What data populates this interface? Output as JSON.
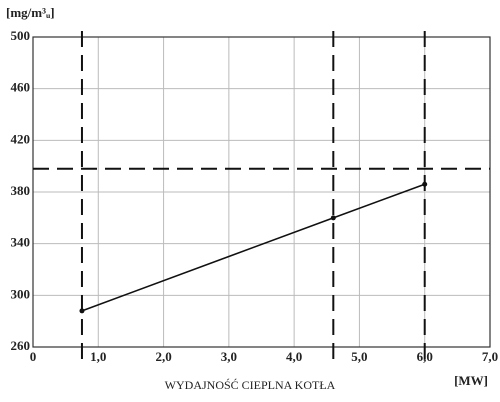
{
  "chart_data": {
    "type": "line",
    "ylabel": "[mg/m³ᵤ]",
    "xlabel": "WYDAJNOŚĆ CIEPLNA KOTŁA",
    "xunit": "[MW]",
    "x": [
      0.75,
      4.6,
      6.0
    ],
    "values": [
      288,
      360,
      386
    ],
    "color": "#111111",
    "xlim": [
      0,
      7
    ],
    "ylim": [
      260,
      500
    ],
    "xticks": [
      0,
      {
        "value": 1,
        "label": "1,0"
      },
      {
        "value": 2,
        "label": "2,0"
      },
      {
        "value": 3,
        "label": "3,0"
      },
      {
        "value": 4,
        "label": "4,0"
      },
      {
        "value": 5,
        "label": "5,0"
      },
      {
        "value": 6,
        "label": "6,0"
      },
      {
        "value": 7,
        "label": "7,0"
      }
    ],
    "yticks": [
      260,
      300,
      340,
      380,
      420,
      460,
      500
    ],
    "grid": true,
    "reference_lines": {
      "x": [
        0.75,
        4.6,
        6.0
      ],
      "y": [
        398
      ]
    }
  }
}
